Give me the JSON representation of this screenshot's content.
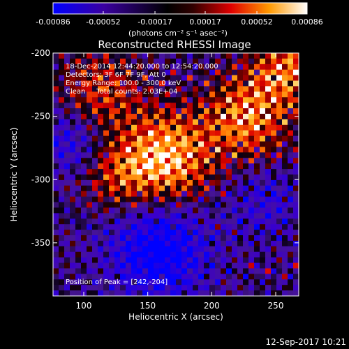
{
  "colorbar": {
    "ticks": [
      "-0.00086",
      "-0.00052",
      "-0.00017",
      "0.00017",
      "0.00052",
      "0.00086"
    ],
    "unit_label": "(photons cm⁻² s⁻¹ asec⁻²)",
    "range": [
      -0.00086,
      0.00086
    ]
  },
  "chart_data": {
    "type": "heatmap",
    "title": "Reconstructed RHESSI Image",
    "xlabel": "Heliocentric X (arcsec)",
    "ylabel": "Heliocentric Y (arcsec)",
    "xlim": [
      76,
      268
    ],
    "ylim": [
      -392,
      -200
    ],
    "x_ticks": [
      100,
      150,
      200,
      250
    ],
    "y_ticks": [
      -200,
      -250,
      -300,
      -350
    ],
    "peak": [
      242,
      -204
    ],
    "colormap": "rhessi-blue-black-red-yellow-white"
  },
  "annotations": {
    "line1": "18-Dec-2014 12:44:20.000 to 12:54:20.000",
    "line2": "Detectors: 3F 6F 7F 9F, Att 0",
    "line3": "Energy Range: 100.0 - 300.0 keV",
    "line4": "Clean     Total counts: 2.03E+04",
    "peak_label": "Position of Peak = [242,-204]"
  },
  "timestamp": "12-Sep-2017 10:21"
}
